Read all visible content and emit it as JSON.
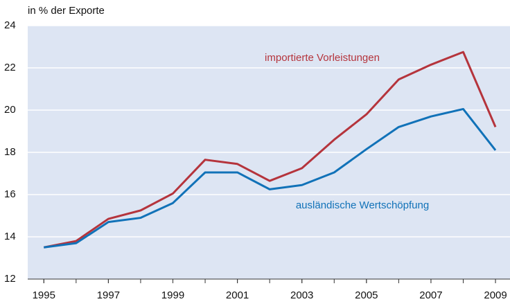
{
  "chart_data": {
    "type": "line",
    "subtitle": "in % der Exporte",
    "x": [
      1995,
      1996,
      1997,
      1998,
      1999,
      2000,
      2001,
      2002,
      2003,
      2004,
      2005,
      2006,
      2007,
      2008,
      2009
    ],
    "series": [
      {
        "name": "importierte Vorleistungen",
        "color": "#b5343c",
        "values": [
          13.5,
          13.8,
          14.85,
          15.25,
          16.05,
          17.65,
          17.45,
          16.65,
          17.25,
          18.6,
          19.8,
          21.45,
          22.15,
          22.75,
          19.2
        ]
      },
      {
        "name": "ausländische Wertschöpfung",
        "color": "#1172b8",
        "values": [
          13.5,
          13.7,
          14.7,
          14.9,
          15.6,
          17.05,
          17.05,
          16.25,
          16.45,
          17.05,
          18.15,
          19.2,
          19.7,
          20.05,
          18.1
        ]
      }
    ],
    "xlim": [
      1994.5,
      2009.45
    ],
    "xticks": [
      1995,
      1997,
      1999,
      2001,
      2003,
      2005,
      2007,
      2009
    ],
    "ylim": [
      12,
      24
    ],
    "yticks": [
      12,
      14,
      16,
      18,
      20,
      22,
      24
    ],
    "grid": true,
    "background": "#dde5f3"
  }
}
